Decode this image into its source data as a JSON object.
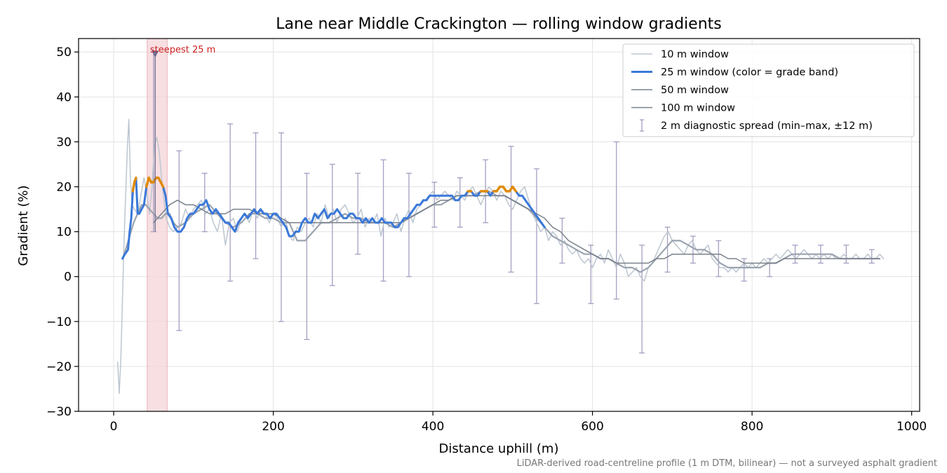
{
  "chart_data": {
    "type": "line",
    "title": "Lane near Middle Crackington — rolling window gradients",
    "xlabel": "Distance uphill (m)",
    "ylabel": "Gradient (%)",
    "xlim": [
      -44,
      1010
    ],
    "ylim": [
      -30,
      53
    ],
    "xticks": [
      0,
      200,
      400,
      600,
      800,
      1000
    ],
    "yticks": [
      -30,
      -20,
      -10,
      0,
      10,
      20,
      30,
      40,
      50
    ],
    "xtick_labels": [
      "0",
      "200",
      "400",
      "600",
      "800",
      "1000"
    ],
    "ytick_labels": [
      "−30",
      "−20",
      "−10",
      "0",
      "10",
      "20",
      "30",
      "40",
      "50"
    ],
    "grid": true,
    "legend_position": "top-right",
    "footnote": "LiDAR-derived road-centreline profile (1 m DTM, bilinear) — not a surveyed asphalt gradient",
    "annotation": {
      "label": "steepest 25 m",
      "x": 52,
      "y": 50,
      "band": [
        42,
        67
      ],
      "color": "#cc2222"
    },
    "colors": {
      "w10": "#bcc6d0",
      "w25": "#3a78d8",
      "w25_steep": "#e08a00",
      "w50": "#9aa3af",
      "w100": "#7a818b",
      "errorbar": "#a59fc2",
      "band": "#f4d4d8"
    },
    "series": [
      {
        "name": "10 m window",
        "x": [
          5,
          7,
          9,
          11,
          13,
          15,
          17,
          19,
          21,
          23,
          26,
          30,
          34,
          38,
          42,
          45,
          48,
          51,
          54,
          57,
          60,
          63,
          66,
          70,
          75,
          80,
          85,
          90,
          95,
          100,
          105,
          110,
          115,
          120,
          125,
          130,
          135,
          140,
          145,
          150,
          155,
          160,
          165,
          170,
          175,
          180,
          185,
          190,
          195,
          200,
          205,
          210,
          215,
          220,
          225,
          230,
          235,
          240,
          245,
          250,
          255,
          260,
          265,
          270,
          275,
          280,
          285,
          290,
          295,
          300,
          305,
          310,
          315,
          320,
          325,
          330,
          335,
          340,
          345,
          350,
          355,
          360,
          365,
          370,
          375,
          380,
          385,
          390,
          395,
          400,
          405,
          410,
          415,
          420,
          425,
          430,
          435,
          440,
          445,
          450,
          455,
          460,
          465,
          470,
          475,
          480,
          485,
          490,
          495,
          500,
          505,
          510,
          515,
          520,
          525,
          530,
          535,
          540,
          545,
          550,
          555,
          560,
          565,
          570,
          575,
          580,
          585,
          590,
          595,
          600,
          605,
          610,
          615,
          620,
          625,
          630,
          635,
          640,
          645,
          650,
          655,
          660,
          665,
          670,
          675,
          680,
          685,
          690,
          695,
          700,
          705,
          710,
          715,
          720,
          725,
          730,
          735,
          740,
          745,
          750,
          755,
          760,
          765,
          770,
          775,
          780,
          785,
          790,
          795,
          800,
          805,
          810,
          815,
          820,
          825,
          830,
          835,
          840,
          845,
          850,
          855,
          860,
          865,
          870,
          875,
          880,
          885,
          890,
          895,
          900,
          905,
          910,
          915,
          920,
          925,
          930,
          935,
          940,
          945,
          950,
          955,
          960,
          965
        ],
        "y": [
          -19,
          -26,
          -18,
          -5,
          8,
          18,
          28,
          35,
          22,
          16,
          15,
          14,
          18,
          22,
          18,
          14,
          20,
          29,
          31,
          28,
          22,
          17,
          13,
          11,
          10,
          11,
          12,
          15,
          13,
          15,
          16,
          17,
          14,
          15,
          12,
          10,
          14,
          7,
          12,
          13,
          10,
          13,
          14,
          12,
          15,
          13,
          15,
          14,
          12,
          14,
          13,
          11,
          13,
          9,
          8,
          11,
          10,
          12,
          13,
          11,
          14,
          12,
          16,
          13,
          15,
          12,
          15,
          16,
          14,
          12,
          13,
          15,
          11,
          13,
          12,
          14,
          9,
          13,
          11,
          12,
          14,
          10,
          13,
          15,
          12,
          15,
          16,
          17,
          18,
          19,
          17,
          18,
          19,
          18,
          17,
          19,
          18,
          17,
          19,
          20,
          18,
          16,
          18,
          20,
          19,
          17,
          19,
          18,
          16,
          15,
          17,
          19,
          20,
          17,
          14,
          12,
          10,
          11,
          8,
          10,
          9,
          7,
          8,
          6,
          5,
          6,
          4,
          3,
          4,
          2,
          4,
          5,
          3,
          6,
          4,
          2,
          5,
          3,
          0,
          1,
          2,
          0,
          -1,
          2,
          3,
          5,
          7,
          9,
          10,
          8,
          7,
          6,
          5,
          7,
          8,
          6,
          5,
          6,
          7,
          4,
          3,
          2,
          2,
          1,
          2,
          1,
          2,
          3,
          2,
          3,
          2,
          3,
          4,
          3,
          4,
          5,
          4,
          5,
          6,
          5,
          4,
          5,
          6,
          5,
          4,
          5,
          4,
          5,
          4,
          5,
          4,
          4,
          5,
          4,
          4,
          5,
          4,
          4,
          5,
          4,
          4,
          5,
          4
        ]
      },
      {
        "name": "25 m window (color = grade band)",
        "x": [
          11,
          14,
          18,
          20,
          22,
          24,
          26,
          28,
          30,
          32,
          35,
          38,
          41,
          44,
          47,
          50,
          53,
          56,
          59,
          62,
          65,
          68,
          72,
          76,
          80,
          84,
          88,
          92,
          96,
          100,
          104,
          108,
          112,
          116,
          120,
          124,
          128,
          132,
          136,
          140,
          144,
          148,
          152,
          156,
          160,
          164,
          168,
          172,
          176,
          180,
          184,
          188,
          192,
          196,
          200,
          204,
          208,
          212,
          216,
          220,
          224,
          228,
          232,
          236,
          240,
          244,
          248,
          252,
          256,
          260,
          264,
          268,
          272,
          276,
          280,
          284,
          288,
          292,
          296,
          300,
          304,
          308,
          312,
          316,
          320,
          324,
          328,
          332,
          336,
          340,
          344,
          348,
          352,
          356,
          360,
          364,
          368,
          372,
          376,
          380,
          384,
          388,
          392,
          396,
          400,
          404,
          408,
          412,
          416,
          420,
          424,
          428,
          432,
          436,
          440,
          444,
          448,
          452,
          456,
          460,
          464,
          468,
          472,
          476,
          480,
          484,
          488,
          492,
          496,
          500,
          504,
          508,
          512,
          516,
          520,
          524,
          528,
          532,
          536,
          540
        ],
        "y": [
          4,
          5,
          6,
          10,
          13,
          19,
          21,
          22,
          14,
          14,
          15,
          16,
          20,
          22,
          21,
          21,
          22,
          22,
          21,
          20,
          18,
          14,
          13,
          11,
          10,
          10,
          11,
          13,
          14,
          14,
          15,
          16,
          16,
          17,
          15,
          14,
          15,
          14,
          13,
          12,
          12,
          11,
          10,
          12,
          13,
          14,
          13,
          14,
          15,
          14,
          15,
          14,
          14,
          13,
          14,
          14,
          13,
          12,
          11,
          9,
          9,
          10,
          10,
          12,
          13,
          12,
          12,
          14,
          13,
          14,
          15,
          13,
          14,
          14,
          15,
          14,
          13,
          13,
          14,
          14,
          13,
          13,
          12,
          13,
          12,
          13,
          12,
          12,
          13,
          12,
          12,
          12,
          11,
          11,
          12,
          13,
          13,
          14,
          15,
          16,
          16,
          17,
          17,
          18,
          18,
          18,
          18,
          18,
          18,
          18,
          18,
          17,
          17,
          18,
          18,
          19,
          19,
          18,
          18,
          19,
          19,
          19,
          18,
          19,
          19,
          20,
          20,
          19,
          19,
          20,
          19,
          18,
          18,
          17,
          16,
          15,
          14,
          13,
          12,
          11
        ]
      },
      {
        "name": "50 m window",
        "x": [
          11,
          15,
          20,
          25,
          30,
          35,
          40,
          45,
          50,
          55,
          60,
          65,
          70,
          75,
          80,
          90,
          100,
          110,
          120,
          130,
          140,
          150,
          160,
          170,
          180,
          190,
          200,
          210,
          220,
          230,
          240,
          250,
          260,
          270,
          280,
          290,
          300,
          310,
          320,
          330,
          340,
          350,
          360,
          370,
          380,
          390,
          400,
          410,
          420,
          430,
          440,
          450,
          460,
          470,
          480,
          490,
          500,
          510,
          520,
          530,
          540,
          550,
          560,
          570,
          580,
          590,
          600,
          610,
          620,
          630,
          640,
          650,
          660,
          670,
          680,
          690,
          700,
          710,
          720,
          730,
          740,
          750,
          760,
          770,
          780,
          790,
          800,
          810,
          820,
          830,
          840,
          850,
          860,
          870,
          880,
          890,
          900,
          910,
          920,
          930,
          940,
          950,
          960
        ],
        "y": [
          4,
          6,
          9,
          12,
          14,
          16,
          16,
          15,
          14,
          13,
          13,
          14,
          14,
          12,
          11,
          12,
          14,
          15,
          16,
          14,
          12,
          11,
          12,
          14,
          14,
          13,
          13,
          12,
          12,
          8,
          8,
          10,
          12,
          12,
          13,
          14,
          13,
          13,
          12,
          12,
          12,
          11,
          12,
          13,
          14,
          15,
          16,
          16,
          17,
          18,
          18,
          18,
          19,
          19,
          18,
          18,
          17,
          16,
          15,
          13,
          11,
          9,
          8,
          7,
          6,
          5,
          5,
          4,
          4,
          3,
          2,
          2,
          1,
          2,
          4,
          6,
          8,
          8,
          7,
          6,
          6,
          5,
          3,
          2,
          2,
          2,
          2,
          2,
          3,
          3,
          4,
          5,
          5,
          5,
          5,
          5,
          5,
          4,
          4,
          4,
          4,
          4,
          4
        ]
      },
      {
        "name": "100 m window",
        "x": [
          50,
          60,
          70,
          80,
          90,
          100,
          110,
          120,
          130,
          140,
          150,
          160,
          170,
          180,
          190,
          200,
          210,
          220,
          230,
          240,
          250,
          260,
          270,
          280,
          290,
          300,
          310,
          320,
          330,
          340,
          350,
          360,
          370,
          380,
          390,
          400,
          410,
          420,
          430,
          440,
          450,
          460,
          470,
          480,
          490,
          500,
          510,
          520,
          530,
          540,
          550,
          560,
          570,
          580,
          590,
          600,
          610,
          620,
          630,
          640,
          650,
          660,
          670,
          680,
          690,
          700,
          710,
          720,
          730,
          740,
          750,
          760,
          770,
          780,
          790,
          800,
          810,
          820,
          830,
          840,
          850,
          860,
          870,
          880,
          890,
          900,
          910,
          920,
          930,
          940,
          950,
          960
        ],
        "y": [
          12,
          14,
          16,
          17,
          16,
          16,
          15,
          14,
          14,
          14,
          15,
          15,
          15,
          14,
          14,
          14,
          13,
          12,
          12,
          12,
          12,
          12,
          12,
          12,
          12,
          12,
          12,
          12,
          12,
          12,
          12,
          12,
          13,
          14,
          15,
          16,
          17,
          17,
          18,
          18,
          18,
          18,
          18,
          18,
          18,
          17,
          16,
          15,
          14,
          13,
          11,
          10,
          8,
          7,
          6,
          5,
          4,
          4,
          3,
          3,
          3,
          3,
          3,
          4,
          4,
          5,
          5,
          5,
          5,
          5,
          5,
          5,
          4,
          4,
          3,
          3,
          3,
          3,
          3,
          4,
          4,
          4,
          4,
          4,
          4,
          4,
          4,
          4,
          4,
          4,
          4,
          4
        ]
      }
    ],
    "diagnostic_spread": {
      "name": "2 m diagnostic spread (min–max, ±12 m)",
      "x": [
        50,
        82,
        114,
        146,
        178,
        210,
        242,
        274,
        306,
        338,
        370,
        402,
        434,
        466,
        498,
        530,
        562,
        598,
        630,
        662,
        694,
        726,
        758,
        790,
        822,
        854,
        886,
        918,
        950
      ],
      "min": [
        10,
        -12,
        10,
        -1,
        4,
        -10,
        -14,
        -2,
        5,
        -1,
        0,
        11,
        11,
        12,
        1,
        -6,
        3,
        -6,
        -5,
        -17,
        1,
        3,
        0,
        -1,
        0,
        3,
        3,
        3,
        3
      ],
      "max": [
        50,
        28,
        23,
        34,
        32,
        32,
        23,
        25,
        23,
        26,
        23,
        21,
        22,
        26,
        29,
        24,
        13,
        7,
        30,
        7,
        11,
        9,
        8,
        4,
        4,
        7,
        7,
        7,
        6
      ]
    }
  }
}
